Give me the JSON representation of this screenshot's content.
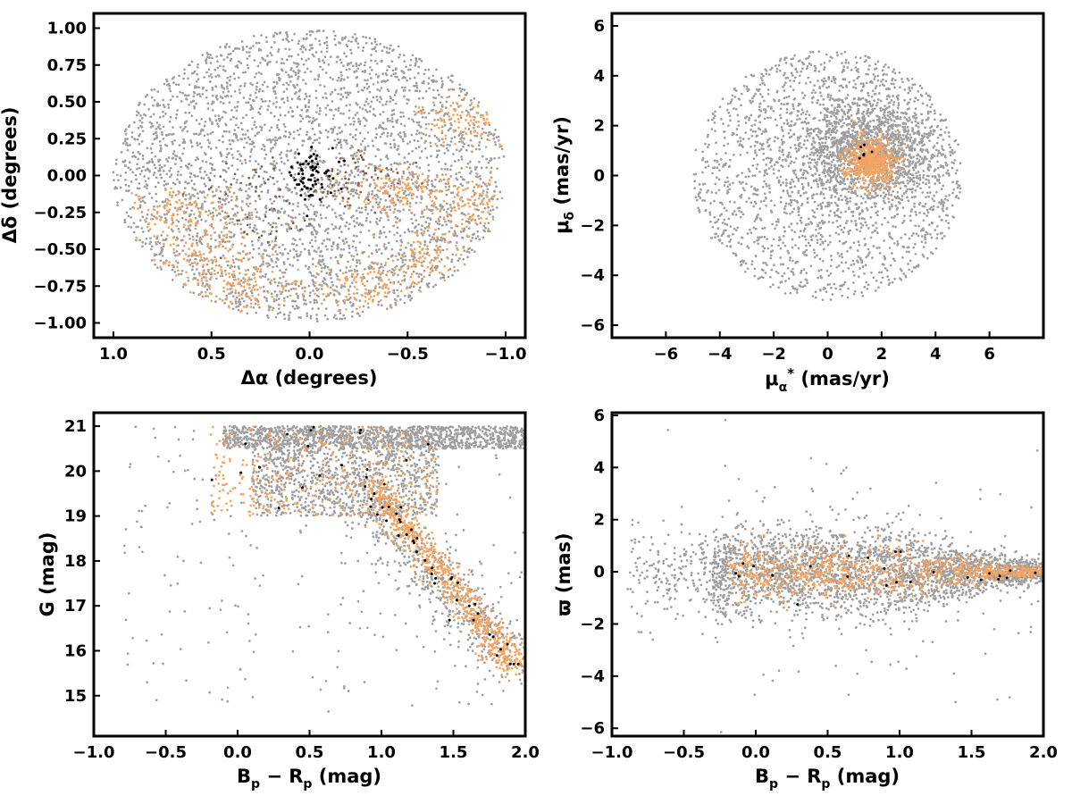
{
  "colors": {
    "field": "#9e9e9e",
    "member": "#f4a460",
    "member_dark": "#8b5a3c",
    "core": "#000000"
  },
  "chart_data": [
    {
      "type": "scatter",
      "panel": "sky-position",
      "xlabel": "Δα (degrees)",
      "ylabel": "Δδ (degrees)",
      "xlim": [
        1.1,
        -1.1
      ],
      "ylim": [
        -1.1,
        1.1
      ],
      "x_ticks": [
        1.0,
        0.5,
        0.0,
        -0.5,
        -1.0
      ],
      "x_tick_labels": [
        "1.0",
        "0.5",
        "0.0",
        "−0.5",
        "−1.0"
      ],
      "y_ticks": [
        1.0,
        0.75,
        0.5,
        0.25,
        0.0,
        -0.25,
        -0.5,
        -0.75,
        -1.0
      ],
      "y_tick_labels": [
        "1.00",
        "0.75",
        "0.50",
        "0.25",
        "0.00",
        "−0.25",
        "−0.50",
        "−0.75",
        "−1.00"
      ],
      "grid": false,
      "series": [
        {
          "color": "#9e9e9e",
          "count": 3400,
          "distribution": "uniform disk",
          "center": [
            0.0,
            0.0
          ],
          "radius": 1.0
        },
        {
          "color": "#f4a460",
          "count": 900,
          "distribution": "clustered",
          "clusters": [
            [
              -0.6,
              -0.55
            ],
            [
              -0.3,
              -0.75
            ],
            [
              -0.8,
              -0.2
            ],
            [
              -0.45,
              -0.1
            ],
            [
              0.35,
              -0.75
            ],
            [
              0.55,
              -0.55
            ],
            [
              -0.8,
              0.38
            ],
            [
              0.65,
              -0.25
            ]
          ]
        },
        {
          "color": "#8b5a3c",
          "count": 120,
          "distribution": "clustered",
          "clusters": [
            [
              0.2,
              -0.35
            ],
            [
              -0.15,
              -0.1
            ],
            [
              -0.25,
              0.0
            ],
            [
              0.3,
              -0.05
            ]
          ]
        },
        {
          "color": "#000000",
          "count": 70,
          "distribution": "gaussian",
          "center": [
            0.0,
            0.0
          ],
          "spread": [
            0.06,
            0.08
          ]
        }
      ]
    },
    {
      "type": "scatter",
      "panel": "proper-motion",
      "xlabel": "μα* (mas/yr)",
      "ylabel": "μδ (mas/yr)",
      "xlim": [
        -8,
        8
      ],
      "ylim": [
        -6.5,
        6.5
      ],
      "x_ticks": [
        -6,
        -4,
        -2,
        0,
        2,
        4,
        6
      ],
      "x_tick_labels": [
        "−6",
        "−4",
        "−2",
        "0",
        "2",
        "4",
        "6"
      ],
      "y_ticks": [
        6,
        4,
        2,
        0,
        -2,
        -4,
        -6
      ],
      "y_tick_labels": [
        "6",
        "4",
        "2",
        "0",
        "−2",
        "−4",
        "−6"
      ],
      "grid": false,
      "series": [
        {
          "color": "#9e9e9e",
          "count": 3200,
          "distribution": "dense disk",
          "center": [
            0.0,
            0.0
          ],
          "radius": 5.0,
          "core": [
            1.5,
            1.0
          ]
        },
        {
          "color": "#f4a460",
          "count": 600,
          "distribution": "gaussian",
          "center": [
            1.6,
            0.6
          ],
          "spread": [
            0.45,
            0.45
          ]
        },
        {
          "color": "#000000",
          "count": 6,
          "distribution": "gaussian",
          "center": [
            1.4,
            0.9
          ],
          "spread": [
            0.3,
            0.3
          ]
        }
      ]
    },
    {
      "type": "scatter",
      "panel": "cmd",
      "xlabel": "Bp − Rp (mag)",
      "ylabel": "G (mag)",
      "xlim": [
        -1.0,
        2.0
      ],
      "ylim": [
        14.1,
        21.3
      ],
      "y_inverted": false,
      "x_ticks": [
        -1.0,
        -0.5,
        0.0,
        0.5,
        1.0,
        1.5,
        2.0
      ],
      "x_tick_labels": [
        "−1.0",
        "−0.5",
        "0.0",
        "0.5",
        "1.0",
        "1.5",
        "2.0"
      ],
      "y_ticks": [
        21,
        20,
        19,
        18,
        17,
        16,
        15
      ],
      "y_tick_labels": [
        "21",
        "20",
        "19",
        "18",
        "17",
        "16",
        "15"
      ],
      "grid": false,
      "series": [
        {
          "color": "#9e9e9e",
          "count": 3000,
          "distribution": "cmd field"
        },
        {
          "color": "#f4a460",
          "count": 1100,
          "distribution": "main sequence",
          "sequence": [
            [
              1.05,
              19.0
            ],
            [
              1.15,
              18.5
            ],
            [
              1.3,
              17.8
            ],
            [
              1.45,
              17.0
            ],
            [
              1.6,
              16.5
            ],
            [
              1.8,
              16.0
            ],
            [
              1.95,
              15.7
            ]
          ]
        },
        {
          "color": "#000000",
          "count": 60,
          "distribution": "main sequence"
        }
      ]
    },
    {
      "type": "scatter",
      "panel": "parallax",
      "xlabel": "Bp − Rp (mag)",
      "ylabel": "ϖ (mas)",
      "xlim": [
        -1.0,
        2.0
      ],
      "ylim": [
        -6.3,
        6.1
      ],
      "x_ticks": [
        -1.0,
        -0.5,
        0.0,
        0.5,
        1.0,
        1.5,
        2.0
      ],
      "x_tick_labels": [
        "−1.0",
        "−0.5",
        "0.0",
        "0.5",
        "1.0",
        "1.5",
        "2.0"
      ],
      "y_ticks": [
        6,
        4,
        2,
        0,
        -2,
        -4,
        -6
      ],
      "y_tick_labels": [
        "6",
        "4",
        "2",
        "0",
        "−2",
        "−4",
        "−6"
      ],
      "grid": false,
      "series": [
        {
          "color": "#9e9e9e",
          "count": 3000,
          "distribution": "funnel",
          "center": 0.0
        },
        {
          "color": "#f4a460",
          "count": 900,
          "distribution": "funnel narrow",
          "center": 0.0
        },
        {
          "color": "#000000",
          "count": 25,
          "distribution": "funnel narrow",
          "center": 0.0
        }
      ]
    }
  ]
}
